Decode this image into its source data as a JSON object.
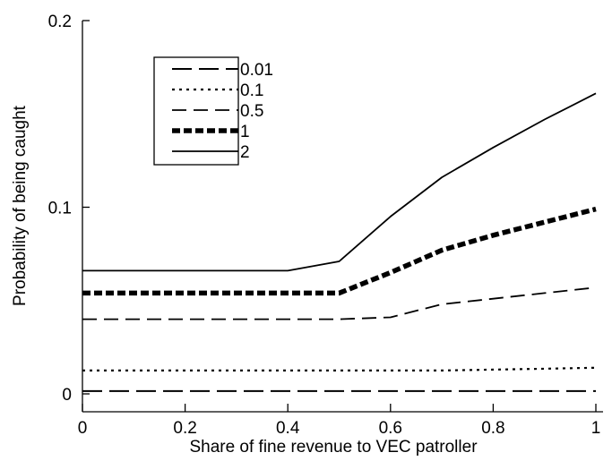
{
  "chart_data": {
    "type": "line",
    "title": "",
    "xlabel": "Share of fine revenue to VEC patroller",
    "ylabel": "Probability of being caught",
    "xlim": [
      0,
      1
    ],
    "ylim": [
      0,
      0.2
    ],
    "x_ticks": [
      0,
      0.2,
      0.4,
      0.6,
      0.8,
      1
    ],
    "x_tick_labels": [
      "0",
      "0.2",
      "0.4",
      "0.6",
      "0.8",
      "1"
    ],
    "y_ticks": [
      0,
      0.1,
      0.2
    ],
    "y_tick_labels": [
      "0",
      "0.1",
      "0.2"
    ],
    "grid": false,
    "legend_position": "upper-left",
    "x": [
      0,
      0.1,
      0.2,
      0.3,
      0.4,
      0.5,
      0.6,
      0.7,
      0.8,
      0.9,
      1.0
    ],
    "series": [
      {
        "name": "0.01",
        "style": "long-dash",
        "color": "#000000",
        "values": [
          0.0015,
          0.0015,
          0.0015,
          0.0015,
          0.0015,
          0.0015,
          0.0015,
          0.0015,
          0.0015,
          0.0015,
          0.0015
        ]
      },
      {
        "name": "0.1",
        "style": "dotted",
        "color": "#000000",
        "values": [
          0.0125,
          0.0125,
          0.0125,
          0.0125,
          0.0125,
          0.0125,
          0.0125,
          0.0125,
          0.013,
          0.0135,
          0.014
        ]
      },
      {
        "name": "0.5",
        "style": "dashed",
        "color": "#000000",
        "values": [
          0.04,
          0.04,
          0.04,
          0.04,
          0.04,
          0.04,
          0.041,
          0.048,
          0.051,
          0.054,
          0.057
        ]
      },
      {
        "name": "1",
        "style": "thick-dashed",
        "color": "#000000",
        "values": [
          0.054,
          0.054,
          0.054,
          0.054,
          0.054,
          0.054,
          0.065,
          0.077,
          0.085,
          0.092,
          0.099
        ]
      },
      {
        "name": "2",
        "style": "solid",
        "color": "#000000",
        "values": [
          0.066,
          0.066,
          0.066,
          0.066,
          0.066,
          0.071,
          0.095,
          0.116,
          0.132,
          0.147,
          0.161
        ]
      }
    ]
  }
}
